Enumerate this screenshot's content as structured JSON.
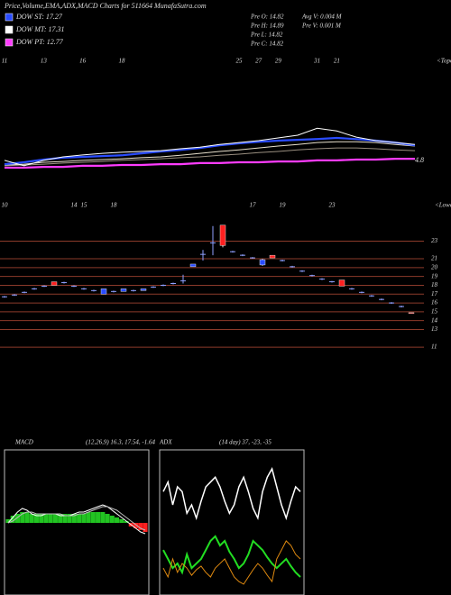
{
  "header": {
    "title": "Price,Volume,EMA,ADX,MACD Charts for 511664 MunafaSutra.com",
    "dow": [
      {
        "label": "DOW ST: 17.27",
        "color": "#2a4cff"
      },
      {
        "label": "DOW MT: 17.31",
        "color": "#ffffff"
      },
      {
        "label": "DOW PT: 12.77",
        "color": "#ff3cff"
      }
    ],
    "info": [
      "Pre  O: 14.82",
      "Pre  H: 14.89",
      "Pre  L: 14.82",
      "Pre  C: 14.82",
      "Avg V: 0.004  M",
      "Pre  V: 0.001 M"
    ]
  },
  "chart_data": [
    {
      "type": "line",
      "axis_note": "<Topo",
      "right_label": "4.8",
      "ylim": [
        12,
        26
      ],
      "categories": [
        "11",
        null,
        "13",
        null,
        "16",
        null,
        "18",
        null,
        null,
        null,
        null,
        null,
        "25",
        "27",
        "29",
        null,
        "31",
        "21",
        null,
        null,
        null,
        null
      ],
      "series": [
        {
          "color": "#ff3cff",
          "width": 2.2,
          "values": [
            14.1,
            14.1,
            14.3,
            14.3,
            14.6,
            14.6,
            14.8,
            14.8,
            15.0,
            15.0,
            15.3,
            15.3,
            15.5,
            15.5,
            15.7,
            15.7,
            16.0,
            16.0,
            16.2,
            16.2,
            16.4,
            16.4
          ]
        },
        {
          "color": "#9a8f80",
          "width": 1,
          "values": [
            14.6,
            14.8,
            15.0,
            15.3,
            15.5,
            15.7,
            16.0,
            16.2,
            16.4,
            16.7,
            16.9,
            17.3,
            17.6,
            18.0,
            18.3,
            18.7,
            19.0,
            19.2,
            19.2,
            19.0,
            18.7,
            18.5
          ]
        },
        {
          "color": "#e8e0cc",
          "width": 1,
          "values": [
            14.8,
            15.0,
            15.5,
            15.7,
            16.0,
            16.2,
            16.4,
            16.7,
            16.9,
            17.3,
            17.8,
            18.3,
            18.7,
            19.2,
            19.7,
            20.1,
            20.6,
            20.8,
            20.8,
            20.6,
            20.1,
            19.7
          ]
        },
        {
          "color": "#2a4cff",
          "width": 2.2,
          "values": [
            15.0,
            15.5,
            16.2,
            16.7,
            16.9,
            17.1,
            17.3,
            17.8,
            18.3,
            18.7,
            19.2,
            19.9,
            20.4,
            20.8,
            21.1,
            21.3,
            21.5,
            21.8,
            21.5,
            21.1,
            20.6,
            19.9
          ]
        },
        {
          "color": "#ffffff",
          "width": 1,
          "values": [
            16.0,
            14.6,
            16.0,
            16.9,
            17.4,
            17.8,
            18.1,
            18.3,
            18.5,
            19.0,
            19.4,
            20.1,
            20.6,
            21.1,
            21.8,
            22.5,
            24.3,
            23.6,
            22.0,
            21.1,
            20.6,
            20.1
          ]
        }
      ]
    },
    {
      "type": "candlestick",
      "axis_note": "<Lower",
      "ylim": [
        10.5,
        25.8
      ],
      "grid": true,
      "grid_color": "#8b3a2a",
      "yticks": [
        23,
        21,
        20,
        19,
        18,
        17,
        16,
        15,
        14,
        13,
        11
      ],
      "up_color": "#2a4cff",
      "down_color": "#ff2020",
      "doji_color": "#8fa0ff",
      "categories": [
        "10",
        null,
        null,
        null,
        null,
        null,
        null,
        "14",
        "15",
        null,
        null,
        "18",
        null,
        null,
        null,
        null,
        null,
        null,
        null,
        null,
        null,
        null,
        null,
        null,
        null,
        "17",
        null,
        null,
        "19",
        null,
        null,
        null,
        null,
        "23",
        null,
        null,
        null,
        null,
        null,
        null,
        null,
        null
      ],
      "open": [
        16.7,
        16.9,
        17.2,
        17.6,
        17.9,
        18.4,
        18.3,
        17.9,
        17.6,
        17.4,
        17.0,
        17.3,
        17.3,
        17.4,
        17.4,
        17.8,
        18.0,
        18.2,
        18.5,
        20.1,
        21.5,
        22.8,
        24.8,
        21.8,
        21.4,
        21.1,
        20.3,
        21.4,
        20.8,
        20.1,
        19.6,
        19.1,
        18.7,
        18.4,
        18.6,
        17.6,
        17.2,
        16.8,
        16.4,
        16.0,
        15.6,
        14.9
      ],
      "high": [
        16.8,
        17.0,
        17.3,
        17.7,
        18.0,
        18.4,
        18.4,
        18.0,
        17.7,
        17.5,
        17.6,
        17.4,
        17.6,
        17.5,
        17.6,
        17.9,
        18.1,
        18.3,
        19.2,
        20.4,
        22.0,
        24.7,
        24.8,
        21.9,
        21.5,
        21.2,
        21.0,
        21.4,
        20.9,
        20.2,
        19.7,
        19.2,
        18.8,
        18.5,
        18.6,
        17.7,
        17.3,
        16.9,
        16.5,
        16.1,
        15.7,
        14.89
      ],
      "low": [
        16.6,
        16.8,
        17.1,
        17.5,
        17.8,
        18.0,
        18.2,
        17.8,
        17.5,
        17.3,
        17.0,
        17.2,
        17.3,
        17.3,
        17.4,
        17.7,
        17.9,
        18.1,
        18.2,
        20.1,
        20.8,
        21.4,
        22.3,
        21.7,
        21.3,
        21.0,
        20.2,
        21.1,
        20.7,
        20.0,
        19.5,
        19.0,
        18.6,
        18.3,
        17.9,
        17.5,
        17.1,
        16.7,
        16.3,
        15.9,
        15.5,
        14.82
      ],
      "close": [
        16.7,
        16.9,
        17.2,
        17.6,
        17.9,
        18.0,
        18.3,
        17.9,
        17.6,
        17.4,
        17.6,
        17.3,
        17.6,
        17.4,
        17.6,
        17.8,
        18.0,
        18.2,
        18.5,
        20.4,
        21.5,
        22.8,
        22.5,
        21.8,
        21.4,
        21.1,
        20.9,
        21.1,
        20.8,
        20.1,
        19.6,
        19.1,
        18.7,
        18.4,
        17.9,
        17.6,
        17.2,
        16.8,
        16.4,
        16.0,
        15.6,
        14.82
      ]
    },
    {
      "type": "macd",
      "label": "MACD",
      "params": "(12,26,9) 16.3, 17.54, -1.64",
      "ylim": [
        -40,
        40
      ],
      "series": [
        {
          "name_role": "histogram",
          "color": "#22c422",
          "negative_color": "#ff2020",
          "values": [
            2,
            4,
            5,
            6,
            6,
            5,
            5,
            5,
            5,
            5,
            5,
            5,
            5,
            5,
            5,
            5,
            5,
            6,
            6,
            6,
            6,
            5,
            4,
            3,
            2,
            1,
            -2,
            -3,
            -4,
            -5
          ]
        },
        {
          "name_role": "macd",
          "color": "#ffffff",
          "values": [
            0,
            3,
            6,
            8,
            7,
            5,
            4,
            4,
            5,
            5,
            5,
            4,
            4,
            4,
            5,
            6,
            6,
            7,
            8,
            9,
            10,
            9,
            7,
            5,
            3,
            1,
            -1,
            -3,
            -5,
            -6
          ]
        },
        {
          "name_role": "signal",
          "color": "#bbbbbb",
          "values": [
            0,
            1,
            3,
            5,
            6,
            6,
            5,
            5,
            5,
            5,
            5,
            5,
            4,
            4,
            4,
            5,
            5,
            6,
            7,
            8,
            9,
            9,
            8,
            7,
            5,
            3,
            1,
            -1,
            -3,
            -4
          ]
        }
      ]
    },
    {
      "type": "line",
      "label": "ADX",
      "params": "(14 day) 37, -23, -35",
      "ylim": [
        0,
        60
      ],
      "boxed": true,
      "series": [
        {
          "color": "#ffffff",
          "width": 1.5,
          "values": [
            43,
            47,
            37.5,
            45,
            43,
            34,
            37.5,
            32,
            39,
            45,
            47,
            49,
            45,
            39,
            34,
            37.5,
            45,
            49,
            43,
            36,
            32,
            43,
            49,
            52.5,
            45,
            37.5,
            32,
            39,
            45,
            43
          ]
        },
        {
          "color": "#22dd22",
          "width": 2,
          "values": [
            18.7,
            15,
            11.2,
            13.1,
            9.4,
            16.9,
            11.2,
            13.1,
            15,
            18.7,
            22.5,
            24.4,
            20.6,
            22.5,
            18,
            15,
            11.2,
            13.1,
            16.9,
            22.5,
            20.6,
            18.7,
            15.7,
            13.1,
            11.2,
            13.1,
            15,
            12,
            9.4,
            7.5
          ]
        },
        {
          "color": "#e08a10",
          "width": 1,
          "values": [
            11.2,
            7.5,
            15,
            9.4,
            13.1,
            11.2,
            8.2,
            10.5,
            12,
            9.4,
            7.5,
            11.2,
            13.1,
            15,
            11.2,
            7.5,
            5.6,
            4.5,
            7.5,
            10.5,
            13.1,
            11.2,
            8.2,
            5.6,
            15,
            18.7,
            22.5,
            20.6,
            16.9,
            15
          ]
        }
      ]
    }
  ]
}
